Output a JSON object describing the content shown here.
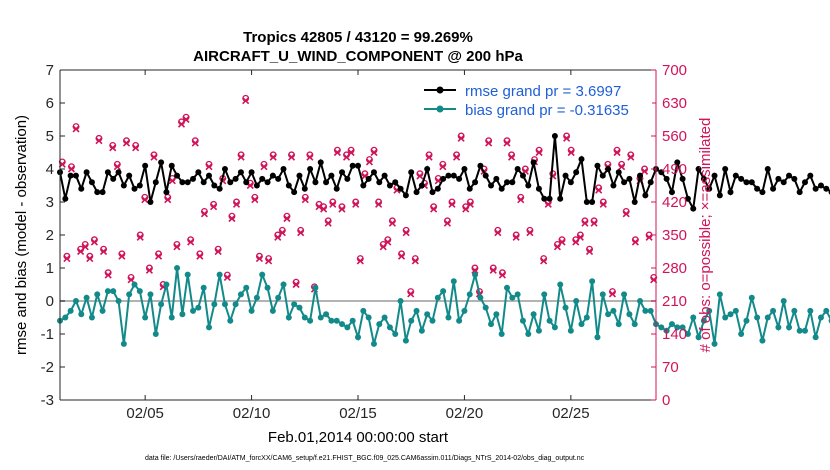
{
  "colors": {
    "rmse": "#000000",
    "bias": "#138a8a",
    "obs": "#d0145a",
    "zero_line": "#b3b3b3",
    "legend_text": "#1f5fd6"
  },
  "chart_data": {
    "type": "line",
    "title_line1": "Tropics 42805 / 43120 = 99.269%",
    "title_line2": "AIRCRAFT_U_WIND_COMPONENT @ 200 hPa",
    "xlabel": "Feb.01,2014 00:00:00 start",
    "ylabel_left": "rmse and bias (model - observation)",
    "ylabel_right": "# of obs: o=possible; ×=assimilated",
    "footer": "data file: /Users/raeder/DAI/ATM_forcXX/CAM6_setup/f.e21.FHIST_BGC.f09_025.CAM6assim.011/Diags_NTrS_2014-02/obs_diag_output.nc",
    "x_ticks": [
      4,
      9,
      14,
      19,
      24
    ],
    "x_tick_labels": [
      "02/05",
      "02/10",
      "02/15",
      "02/20",
      "02/25"
    ],
    "xlim": [
      0,
      28
    ],
    "ylim_left": [
      -3,
      7
    ],
    "y_ticks_left": [
      -3,
      -2,
      -1,
      0,
      1,
      2,
      3,
      4,
      5,
      6,
      7
    ],
    "ylim_right": [
      0,
      700
    ],
    "y_ticks_right": [
      0,
      70,
      140,
      210,
      280,
      350,
      420,
      490,
      560,
      630,
      700
    ],
    "grid": false,
    "legend_position": "top-right",
    "legend": [
      "rmse grand pr = 3.6997",
      "bias grand pr = -0.31635"
    ],
    "step": 0.25,
    "series": [
      {
        "name": "rmse grand pr = 3.6997",
        "axis": "left",
        "values": [
          3.9,
          3.1,
          3.8,
          3.8,
          3.4,
          3.9,
          3.6,
          3.3,
          3.3,
          3.9,
          3.7,
          3.9,
          3.5,
          3.8,
          3.4,
          3.5,
          4.1,
          3.0,
          3.6,
          4.2,
          3.3,
          4.1,
          3.8,
          3.6,
          3.6,
          3.7,
          3.9,
          3.6,
          3.8,
          3.5,
          3.4,
          4.0,
          3.6,
          3.7,
          3.9,
          3.6,
          3.9,
          3.5,
          3.7,
          3.6,
          3.8,
          3.7,
          4.0,
          3.5,
          3.3,
          3.8,
          3.4,
          4.0,
          3.6,
          4.2,
          3.6,
          3.8,
          3.4,
          3.9,
          3.7,
          4.1,
          4.1,
          3.5,
          3.7,
          3.9,
          3.6,
          3.8,
          3.5,
          3.6,
          3.4,
          3.2,
          3.9,
          3.3,
          3.5,
          4.0,
          3.3,
          3.4,
          3.7,
          3.8,
          3.8,
          3.7,
          4.0,
          3.4,
          3.6,
          4.1,
          3.8,
          3.5,
          3.7,
          3.4,
          3.6,
          3.6,
          4.0,
          3.8,
          3.5,
          4.2,
          3.4,
          3.1,
          3.1,
          5.0,
          3.1,
          3.8,
          3.6,
          3.9,
          4.3,
          3.0,
          3.0,
          4.1,
          3.8,
          4.0,
          3.5,
          3.9,
          3.6,
          3.7,
          3.0,
          3.8,
          3.2,
          3.6,
          4.0,
          3.9,
          3.7,
          3.3,
          4.2,
          3.7,
          3.1,
          2.8,
          4.0,
          3.7,
          3.4,
          3.8,
          3.2,
          4.0,
          3.3,
          3.8,
          3.7,
          3.6,
          3.6,
          3.4,
          3.3,
          4.0,
          3.4,
          3.7,
          3.6,
          3.8,
          3.7,
          3.3,
          3.6,
          3.8,
          3.4,
          3.5,
          3.4,
          3.3,
          3.3,
          3.6,
          3.4,
          3.8,
          4.2,
          3.7,
          3.8,
          3.7,
          3.8,
          3.5,
          3.6,
          3.7,
          3.6,
          3.7,
          3.5,
          3.7,
          3.6,
          3.7,
          3.8,
          2.9,
          2.8
        ]
      },
      {
        "name": "bias grand pr = -0.31635",
        "axis": "left",
        "values": [
          -0.6,
          -0.5,
          -0.3,
          0.0,
          -0.4,
          0.1,
          -0.5,
          0.2,
          -0.3,
          0.3,
          0.3,
          0.0,
          -1.3,
          0.2,
          0.5,
          0.3,
          -0.5,
          0.2,
          -1.0,
          -0.1,
          0.5,
          -0.5,
          1.0,
          -0.4,
          0.8,
          -0.3,
          -0.2,
          0.4,
          -0.8,
          -0.1,
          0.8,
          -0.1,
          -0.6,
          -0.1,
          0.2,
          0.4,
          -0.3,
          0.1,
          0.8,
          0.4,
          -0.3,
          0.1,
          0.5,
          -0.5,
          -0.1,
          -0.2,
          -0.5,
          -0.6,
          0.4,
          -0.5,
          -0.4,
          -0.6,
          -0.6,
          -0.7,
          -0.8,
          -0.6,
          -1.1,
          -0.3,
          -0.5,
          -1.3,
          -0.7,
          -0.5,
          -0.8,
          -1.0,
          0.0,
          -1.2,
          -0.6,
          -0.3,
          -0.9,
          -0.4,
          -0.6,
          0.1,
          0.3,
          -0.5,
          0.6,
          -0.6,
          -0.3,
          0.2,
          0.8,
          0.1,
          -0.2,
          -0.7,
          -0.4,
          -1.0,
          0.4,
          0.1,
          0.2,
          -0.6,
          -1.0,
          -0.4,
          -0.9,
          0.2,
          -0.6,
          -0.8,
          0.5,
          -0.2,
          -0.9,
          0.0,
          -0.7,
          -0.5,
          0.6,
          -1.1,
          0.2,
          -0.4,
          -0.3,
          -0.7,
          0.2,
          -0.4,
          -0.7,
          0.0,
          -0.3,
          -0.3,
          -0.7,
          -0.8,
          -0.9,
          -0.7,
          -0.8,
          -0.8,
          -1.0,
          -0.5,
          -1.1,
          -0.6,
          -0.3,
          -1.3,
          0.2,
          -0.5,
          -0.4,
          -0.3,
          -1.0,
          -0.6,
          0.1,
          -0.5,
          -1.2,
          -0.5,
          -0.3,
          -0.8,
          0.0,
          -0.8,
          -0.3,
          -0.9,
          -0.9,
          -0.3,
          -1.1,
          -0.5,
          -0.3,
          -0.6,
          -0.4,
          0.1,
          0.4,
          -0.3,
          -1.4,
          -0.7,
          -0.9,
          -1.6,
          -0.4,
          -1.1,
          -0.5,
          -1.9,
          -1.3,
          -1.1,
          -0.9,
          -0.9,
          -0.6,
          -0.8,
          -0.5,
          -0.4
        ]
      },
      {
        "name": "obs possible",
        "axis": "right",
        "marker": "o",
        "values": [
          505,
          305,
          495,
          580,
          320,
          330,
          305,
          340,
          555,
          320,
          270,
          540,
          500,
          310,
          550,
          260,
          540,
          350,
          430,
          280,
          520,
          310,
          245,
          430,
          470,
          330,
          590,
          600,
          340,
          550,
          310,
          400,
          500,
          415,
          320,
          470,
          265,
          390,
          420,
          520,
          640,
          460,
          430,
          305,
          500,
          300,
          520,
          350,
          360,
          390,
          520,
          250,
          360,
          430,
          520,
          240,
          415,
          410,
          380,
          420,
          530,
          410,
          520,
          530,
          420,
          300,
          480,
          510,
          530,
          420,
          330,
          340,
          380,
          450,
          310,
          360,
          230,
          300,
          480,
          460,
          520,
          410,
          470,
          500,
          380,
          420,
          520,
          560,
          410,
          420,
          280,
          230,
          490,
          550,
          280,
          360,
          270,
          550,
          520,
          350,
          430,
          490,
          360,
          510,
          530,
          300,
          420,
          480,
          330,
          340,
          560,
          530,
          340,
          350,
          380,
          320,
          380,
          450,
          420,
          500,
          230,
          530,
          500,
          400,
          520,
          340,
          470,
          490,
          350,
          260
        ]
      },
      {
        "name": "obs assimilated",
        "axis": "right",
        "marker": "x",
        "values": [
          500,
          300,
          490,
          575,
          315,
          325,
          300,
          335,
          550,
          315,
          265,
          535,
          495,
          305,
          545,
          255,
          535,
          345,
          425,
          275,
          515,
          305,
          240,
          425,
          465,
          325,
          585,
          595,
          335,
          545,
          305,
          395,
          495,
          410,
          315,
          465,
          260,
          385,
          415,
          515,
          635,
          455,
          425,
          300,
          495,
          295,
          515,
          345,
          355,
          385,
          515,
          245,
          355,
          425,
          515,
          235,
          410,
          405,
          375,
          415,
          525,
          405,
          515,
          525,
          415,
          295,
          475,
          505,
          525,
          415,
          325,
          335,
          375,
          445,
          305,
          355,
          225,
          295,
          475,
          455,
          515,
          405,
          465,
          495,
          375,
          415,
          515,
          555,
          405,
          415,
          275,
          225,
          485,
          545,
          275,
          355,
          265,
          545,
          515,
          345,
          425,
          485,
          355,
          505,
          525,
          295,
          415,
          475,
          325,
          335,
          555,
          525,
          335,
          345,
          375,
          315,
          375,
          445,
          415,
          495,
          225,
          525,
          495,
          395,
          515,
          335,
          465,
          485,
          345,
          255
        ]
      }
    ]
  }
}
